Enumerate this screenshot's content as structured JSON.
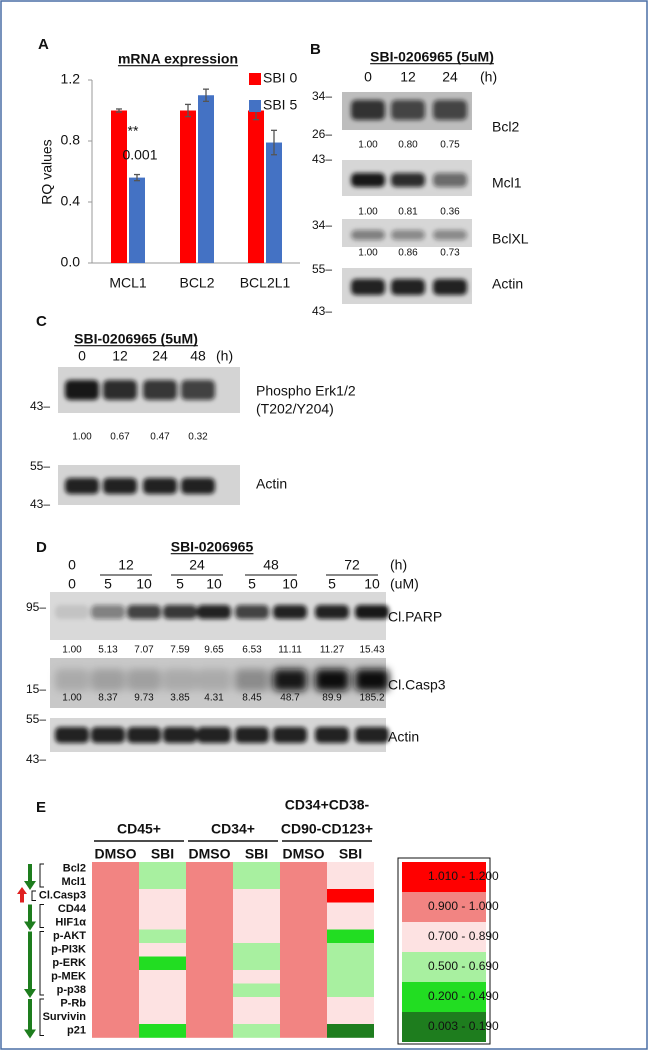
{
  "panel_a": {
    "label": "A",
    "chart_data": {
      "type": "bar",
      "title": "mRNA expression",
      "y_label": "RQ values",
      "categories": [
        "MCL1",
        "BCL2",
        "BCL2L1"
      ],
      "series": [
        {
          "name": "SBI 0",
          "color": "#ff0000",
          "values": [
            1.0,
            1.0,
            1.0
          ],
          "errors": [
            0.01,
            0.04,
            0.06
          ]
        },
        {
          "name": "SBI 5",
          "color": "#4472c4",
          "values": [
            0.56,
            1.1,
            0.79
          ],
          "errors": [
            0.02,
            0.04,
            0.08
          ]
        }
      ],
      "ylim": [
        0,
        1.2
      ],
      "yticks": [
        {
          "value": 0,
          "label": "0.0"
        },
        0.4,
        0.8,
        1.2
      ],
      "annotations": [
        "**",
        "0.001"
      ]
    }
  },
  "panel_b": {
    "label": "B",
    "treatment": "SBI-0206965 (5uM)",
    "lanes": [
      "0",
      "12",
      "24"
    ],
    "lane_unit": "(h)",
    "blots": [
      {
        "name": [
          "Bcl2"
        ],
        "markers": [
          "34–",
          "26–"
        ],
        "quant": [
          "1.00",
          "0.80",
          "0.75"
        ]
      },
      {
        "name": [
          "Mcl1"
        ],
        "markers": [
          "43–"
        ],
        "quant": [
          "1.00",
          "0.81",
          "0.36"
        ]
      },
      {
        "name": [
          "BclXL"
        ],
        "markers": [
          "34–"
        ],
        "quant": [
          "1.00",
          "0.86",
          "0.73"
        ]
      },
      {
        "name": [
          "Actin"
        ],
        "markers": [
          "55–",
          "43–"
        ],
        "quant": []
      }
    ]
  },
  "panel_c": {
    "label": "C",
    "treatment": "SBI-0206965 (5uM)",
    "lanes": [
      "0",
      "12",
      "24",
      "48"
    ],
    "lane_unit": "(h)",
    "blots": [
      {
        "name": [
          "Phospho Erk1/2",
          "(T202/Y204)"
        ],
        "markers": [
          "43–"
        ],
        "quant": [
          "1.00",
          "0.67",
          "0.47",
          "0.32"
        ]
      },
      {
        "name": [
          "Actin"
        ],
        "markers": [
          "55–",
          "43–"
        ],
        "quant": []
      }
    ]
  },
  "panel_d": {
    "label": "D",
    "treatment": "SBI-0206965",
    "times": [
      "0",
      "12",
      "24",
      "48",
      "72"
    ],
    "time_unit": "(h)",
    "doses": [
      "0",
      "5",
      "10",
      "5",
      "10",
      "5",
      "10",
      "5",
      "10"
    ],
    "dose_unit": "(uM)",
    "blots": [
      {
        "name": [
          "Cl.PARP"
        ],
        "markers": [
          "95–"
        ],
        "quant": [
          "1.00",
          "5.13",
          "7.07",
          "7.59",
          "9.65",
          "6.53",
          "11.11",
          "11.27",
          "15.43"
        ]
      },
      {
        "name": [
          "Cl.Casp3"
        ],
        "markers": [
          "15–"
        ],
        "quant": [
          "1.00",
          "8.37",
          "9.73",
          "3.85",
          "4.31",
          "8.45",
          "48.7",
          "89.9",
          "185.2"
        ]
      },
      {
        "name": [
          "Actin"
        ],
        "markers": [
          "55–",
          "43–"
        ],
        "quant": []
      }
    ]
  },
  "panel_e": {
    "label": "E",
    "groups": [
      {
        "lines": [
          "CD45+"
        ]
      },
      {
        "lines": [
          "CD34+"
        ]
      },
      {
        "lines": [
          "CD34+CD38-",
          "CD90-CD123+"
        ]
      }
    ],
    "conditions": [
      "DMSO",
      "SBI"
    ],
    "rows": [
      "Bcl2",
      "Mcl1",
      "Cl.Casp3",
      "CD44",
      "HIF1α",
      "p-AKT",
      "p-PI3K",
      "p-ERK",
      "p-MEK",
      "p-p38",
      "P-Rb",
      "Survivin",
      "p21"
    ],
    "legend": [
      {
        "label": "1.010 - 1.200",
        "color": "#ff0000"
      },
      {
        "label": "0.900 - 1.000",
        "color": "#f28482"
      },
      {
        "label": "0.700 - 0.890",
        "color": "#fde2e2"
      },
      {
        "label": "0.500 - 0.690",
        "color": "#a8f0a0"
      },
      {
        "label": "0.200 - 0.490",
        "color": "#22dd22"
      },
      {
        "label": "0.003 - 0.190",
        "color": "#1e7d1e"
      }
    ],
    "cells": [
      [
        1,
        3,
        1,
        3,
        1,
        2
      ],
      [
        1,
        3,
        1,
        3,
        1,
        2
      ],
      [
        1,
        2,
        1,
        2,
        1,
        0
      ],
      [
        1,
        2,
        1,
        2,
        1,
        2
      ],
      [
        1,
        2,
        1,
        2,
        1,
        2
      ],
      [
        1,
        3,
        1,
        2,
        1,
        4
      ],
      [
        1,
        2,
        1,
        3,
        1,
        3
      ],
      [
        1,
        4,
        1,
        3,
        1,
        3
      ],
      [
        1,
        2,
        1,
        2,
        1,
        3
      ],
      [
        1,
        2,
        1,
        3,
        1,
        3
      ],
      [
        1,
        2,
        1,
        2,
        1,
        2
      ],
      [
        1,
        2,
        1,
        2,
        1,
        2
      ],
      [
        1,
        4,
        1,
        3,
        1,
        5
      ]
    ]
  }
}
